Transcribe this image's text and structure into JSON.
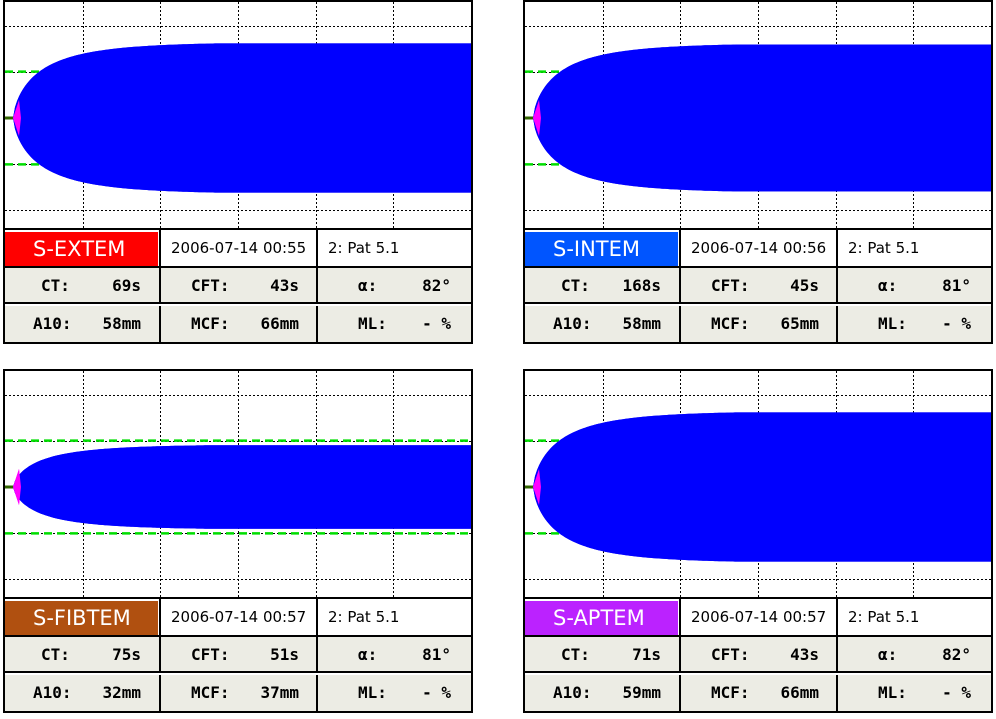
{
  "panels": [
    {
      "name": "S-EXTEM",
      "color": "#ff0000",
      "datetime": "2006-07-14  00:55",
      "patient": "2: Pat 5.1",
      "ct_label": "CT:",
      "ct": "69s",
      "cft_label": "CFT:",
      "cft": "43s",
      "alpha_label": "α:",
      "alpha": "82°",
      "a10_label": "A10:",
      "a10": "58mm",
      "mcf_label": "MCF:",
      "mcf": "66mm",
      "ml_label": "ML:",
      "ml": "- %",
      "amplitude_fraction": 0.66
    },
    {
      "name": "S-INTEM",
      "color": "#0055ff",
      "datetime": "2006-07-14  00:56",
      "patient": "2: Pat 5.1",
      "ct_label": "CT:",
      "ct": "168s",
      "cft_label": "CFT:",
      "cft": "45s",
      "alpha_label": "α:",
      "alpha": "81°",
      "a10_label": "A10:",
      "a10": "58mm",
      "mcf_label": "MCF:",
      "mcf": "65mm",
      "ml_label": "ML:",
      "ml": "- %",
      "amplitude_fraction": 0.65
    },
    {
      "name": "S-FIBTEM",
      "color": "#b05010",
      "datetime": "2006-07-14  00:57",
      "patient": "2: Pat 5.1",
      "ct_label": "CT:",
      "ct": "75s",
      "cft_label": "CFT:",
      "cft": "51s",
      "alpha_label": "α:",
      "alpha": "81°",
      "a10_label": "A10:",
      "a10": "32mm",
      "mcf_label": "MCF:",
      "mcf": "37mm",
      "ml_label": "ML:",
      "ml": "- %",
      "amplitude_fraction": 0.37
    },
    {
      "name": "S-APTEM",
      "color": "#bb22ff",
      "datetime": "2006-07-14  00:57",
      "patient": "2: Pat 5.1",
      "ct_label": "CT:",
      "ct": "71s",
      "cft_label": "CFT:",
      "cft": "43s",
      "alpha_label": "α:",
      "alpha": "82°",
      "a10_label": "A10:",
      "a10": "59mm",
      "mcf_label": "MCF:",
      "mcf": "66mm",
      "ml_label": "ML:",
      "ml": "- %",
      "amplitude_fraction": 0.66
    }
  ],
  "colors": {
    "trace": "#0000ff",
    "ct_marker": "#ff00ff",
    "reference_lines": "#00dd00",
    "baseline": "#336600",
    "grid": "#000000",
    "param_background": "#ecece4"
  }
}
